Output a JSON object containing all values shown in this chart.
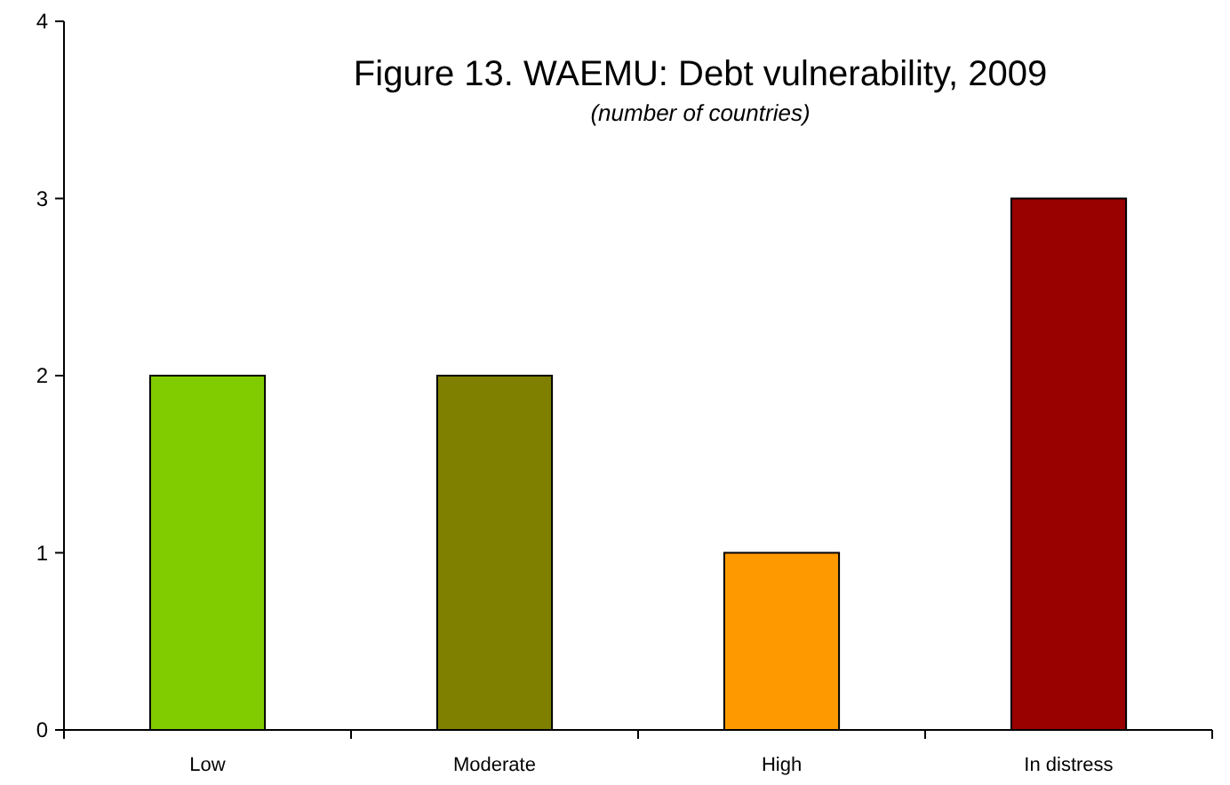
{
  "chart_data": {
    "type": "bar",
    "title": "Figure 13. WAEMU: Debt vulnerability, 2009",
    "subtitle": "(number of countries)",
    "categories": [
      "Low",
      "Moderate",
      "High",
      "In distress"
    ],
    "values": [
      2,
      2,
      1,
      3
    ],
    "colors": [
      "#80cc00",
      "#808000",
      "#ff9900",
      "#990000"
    ],
    "ylim": [
      0,
      4
    ],
    "yticks": [
      0,
      1,
      2,
      3,
      4
    ],
    "grid": false
  }
}
